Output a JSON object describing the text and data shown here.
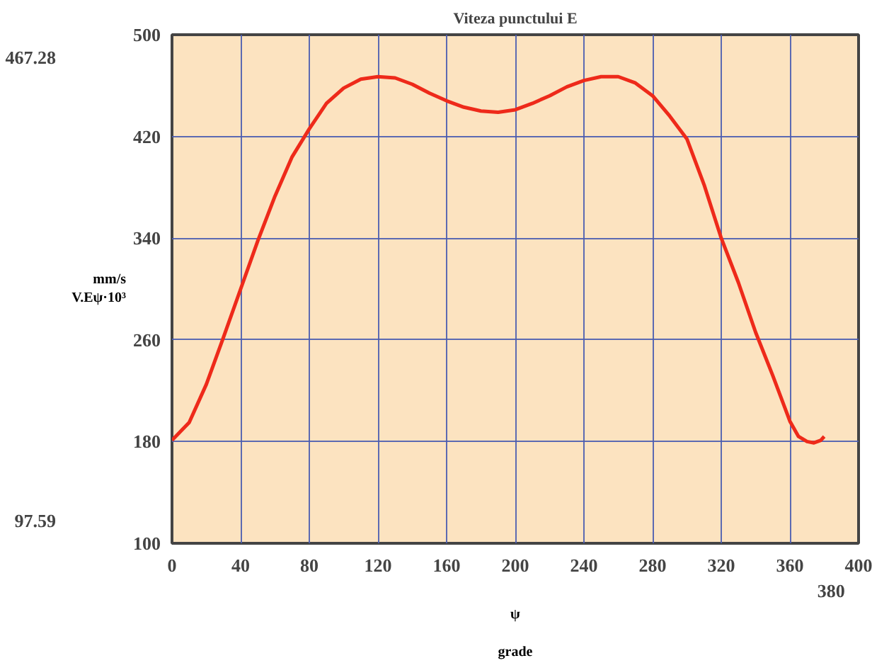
{
  "chart_data": {
    "type": "line",
    "title": "Viteza punctului E",
    "xlabel": "ψ",
    "ylabel": "V.Eψ·10³",
    "annotations": [
      "mm/s",
      "grade",
      "467.28",
      "97.59",
      "380"
    ],
    "x": [
      0,
      10,
      20,
      30,
      40,
      50,
      60,
      70,
      80,
      90,
      100,
      110,
      120,
      130,
      140,
      150,
      160,
      170,
      180,
      190,
      200,
      210,
      220,
      230,
      240,
      250,
      260,
      270,
      280,
      290,
      300,
      310,
      320,
      330,
      340,
      350,
      360,
      365,
      370,
      374,
      378,
      380
    ],
    "series": [
      {
        "color": "#ee2a1a",
        "values": [
          181,
          195,
          225,
          262,
          300,
          338,
          373,
          404,
          426,
          446,
          458,
          465,
          467,
          466,
          461,
          454,
          448,
          443,
          440,
          439,
          441,
          446,
          452,
          459,
          464,
          467,
          467,
          462,
          452,
          436,
          418,
          382,
          340,
          305,
          266,
          232,
          196,
          184,
          180,
          179,
          181,
          184
        ]
      }
    ],
    "xlim": [
      0,
      400
    ],
    "xticks": [
      0,
      40,
      80,
      120,
      160,
      200,
      240,
      280,
      320,
      360,
      400
    ],
    "ylim": [
      100,
      500
    ],
    "yticks": [
      100,
      180,
      260,
      340,
      420,
      500
    ],
    "grid": true,
    "line_style": "solid",
    "marker": "none"
  }
}
